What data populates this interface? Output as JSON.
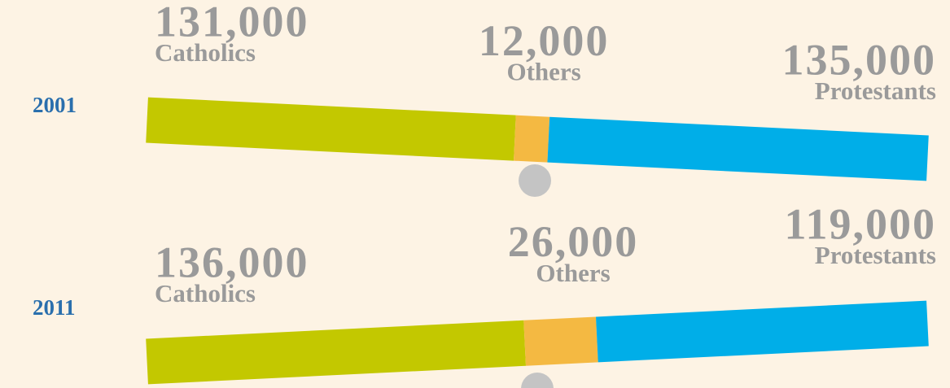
{
  "chart_data": {
    "type": "bar",
    "stacked": true,
    "orientation": "horizontal",
    "categories": [
      "2001",
      "2011"
    ],
    "series": [
      {
        "name": "Catholics",
        "color": "#c3c800",
        "values": [
          131000,
          136000
        ],
        "value_labels": [
          "131,000",
          "136,000"
        ]
      },
      {
        "name": "Others",
        "color": "#f4b942",
        "values": [
          12000,
          26000
        ],
        "value_labels": [
          "12,000",
          "26,000"
        ]
      },
      {
        "name": "Protestants",
        "color": "#00aee8",
        "values": [
          135000,
          119000
        ],
        "value_labels": [
          "135,000",
          "119,000"
        ]
      }
    ]
  }
}
